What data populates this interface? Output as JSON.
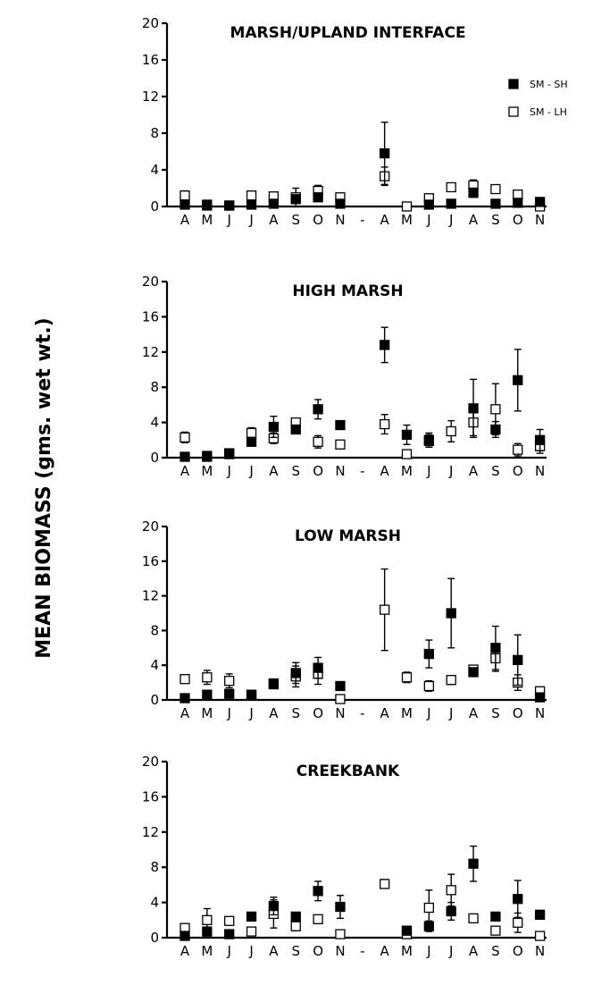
{
  "ylabel": "MEAN BIOMASS (gms. wet wt.)",
  "legend": {
    "items": [
      {
        "label": "SM - SH",
        "marker": "filled-square"
      },
      {
        "label": "SM - LH",
        "marker": "open-square"
      }
    ]
  },
  "chart_data": [
    {
      "type": "scatter",
      "title": "MARSH/UPLAND INTERFACE",
      "categories": [
        "A",
        "M",
        "J",
        "J",
        "A",
        "S",
        "O",
        "N",
        "-",
        "A",
        "M",
        "J",
        "J",
        "A",
        "S",
        "O",
        "N"
      ],
      "ylim": [
        0,
        20
      ],
      "yticks": [
        "0",
        "4",
        "8",
        "12",
        "16",
        "20"
      ],
      "series": [
        {
          "name": "SM - SH",
          "marker": "filled",
          "values": [
            0.2,
            0.1,
            0.1,
            0.2,
            0.3,
            0.8,
            1.0,
            0.3,
            null,
            5.8,
            null,
            0.2,
            0.3,
            1.5,
            0.3,
            0.4,
            0.5
          ],
          "err": [
            0,
            0,
            0,
            0,
            0,
            0,
            0.3,
            0,
            null,
            3.4,
            null,
            0,
            0,
            0.5,
            0,
            0,
            0
          ]
        },
        {
          "name": "SM - LH",
          "marker": "open",
          "values": [
            1.2,
            0.2,
            0.1,
            1.2,
            1.1,
            1.0,
            1.7,
            1.0,
            null,
            3.3,
            0.0,
            0.9,
            2.1,
            2.3,
            1.9,
            1.3,
            0.0
          ],
          "err": [
            0.5,
            0,
            0,
            0.4,
            0.4,
            1.0,
            0.6,
            0,
            null,
            1.0,
            0,
            0,
            0.4,
            0.6,
            0,
            0.3,
            0
          ]
        }
      ]
    },
    {
      "type": "scatter",
      "title": "HIGH MARSH",
      "categories": [
        "A",
        "M",
        "J",
        "J",
        "A",
        "S",
        "O",
        "N",
        "-",
        "A",
        "M",
        "J",
        "J",
        "A",
        "S",
        "O",
        "N"
      ],
      "ylim": [
        0,
        20
      ],
      "yticks": [
        "0",
        "4",
        "8",
        "12",
        "16",
        "20"
      ],
      "series": [
        {
          "name": "SM - SH",
          "marker": "filled",
          "values": [
            0.1,
            0.1,
            0.5,
            1.8,
            3.5,
            3.2,
            5.5,
            3.7,
            null,
            12.8,
            2.6,
            1.9,
            null,
            5.6,
            3.2,
            8.8,
            2.0
          ],
          "err": [
            0,
            0,
            0,
            0,
            1.2,
            0,
            1.1,
            0,
            null,
            2.0,
            1.1,
            0.7,
            null,
            3.3,
            0.9,
            3.5,
            1.2
          ]
        },
        {
          "name": "SM - LH",
          "marker": "open",
          "values": [
            2.3,
            0.2,
            0.4,
            2.8,
            2.2,
            4.0,
            1.8,
            1.5,
            null,
            3.8,
            0.4,
            2.0,
            3.0,
            4.0,
            5.5,
            0.9,
            1.3
          ],
          "err": [
            0.6,
            0,
            0,
            0.6,
            0.6,
            0,
            0.7,
            0,
            null,
            1.1,
            0,
            0.8,
            1.2,
            1.5,
            2.9,
            0.7,
            0.8
          ]
        }
      ]
    },
    {
      "type": "scatter",
      "title": "LOW MARSH",
      "categories": [
        "A",
        "M",
        "J",
        "J",
        "A",
        "S",
        "O",
        "N",
        "-",
        "A",
        "M",
        "J",
        "J",
        "A",
        "S",
        "O",
        "N"
      ],
      "ylim": [
        0,
        20
      ],
      "yticks": [
        "0",
        "4",
        "8",
        "12",
        "16",
        "20"
      ],
      "series": [
        {
          "name": "SM - SH",
          "marker": "filled",
          "values": [
            0.2,
            0.6,
            0.7,
            0.5,
            1.9,
            3.1,
            3.7,
            1.6,
            null,
            null,
            null,
            5.3,
            10.0,
            3.2,
            6.0,
            4.6,
            0.3
          ],
          "err": [
            0,
            0.3,
            0.4,
            0,
            0.4,
            1.2,
            1.2,
            0.4,
            null,
            null,
            null,
            1.6,
            4.0,
            0,
            2.5,
            2.9,
            0
          ]
        },
        {
          "name": "SM - LH",
          "marker": "open",
          "values": [
            2.4,
            2.6,
            2.2,
            0.6,
            1.8,
            2.7,
            3.0,
            0.1,
            null,
            10.4,
            2.6,
            1.6,
            2.3,
            3.5,
            4.8,
            2.0,
            1.0
          ],
          "err": [
            0,
            0.8,
            0.8,
            0,
            0.4,
            1.2,
            1.2,
            0,
            null,
            4.7,
            0.6,
            0.6,
            0.5,
            0.4,
            1.5,
            0.9,
            0
          ]
        }
      ]
    },
    {
      "type": "scatter",
      "title": "CREEKBANK",
      "categories": [
        "A",
        "M",
        "J",
        "J",
        "A",
        "S",
        "O",
        "N",
        "-",
        "A",
        "M",
        "J",
        "J",
        "A",
        "S",
        "O",
        "N"
      ],
      "ylim": [
        0,
        20
      ],
      "yticks": [
        "0",
        "4",
        "8",
        "12",
        "16",
        "20"
      ],
      "series": [
        {
          "name": "SM - SH",
          "marker": "filled",
          "values": [
            0.2,
            0.7,
            0.4,
            2.4,
            3.6,
            2.4,
            5.3,
            3.5,
            null,
            null,
            0.8,
            1.3,
            3.0,
            8.4,
            2.4,
            4.4,
            2.6
          ],
          "err": [
            0,
            0.5,
            0,
            0,
            1.0,
            0,
            1.1,
            1.3,
            null,
            null,
            0.5,
            0.6,
            1.0,
            2.0,
            0,
            2.1,
            0.5
          ]
        },
        {
          "name": "SM - LH",
          "marker": "open",
          "values": [
            1.1,
            2.0,
            1.9,
            0.7,
            2.7,
            1.3,
            2.1,
            0.4,
            null,
            6.1,
            0.4,
            3.4,
            5.4,
            2.2,
            0.8,
            1.7,
            0.2
          ],
          "err": [
            0,
            1.3,
            0,
            0,
            1.6,
            0.5,
            0,
            0,
            null,
            0.5,
            0,
            2.0,
            1.8,
            0,
            0,
            1.1,
            0
          ]
        }
      ]
    }
  ]
}
